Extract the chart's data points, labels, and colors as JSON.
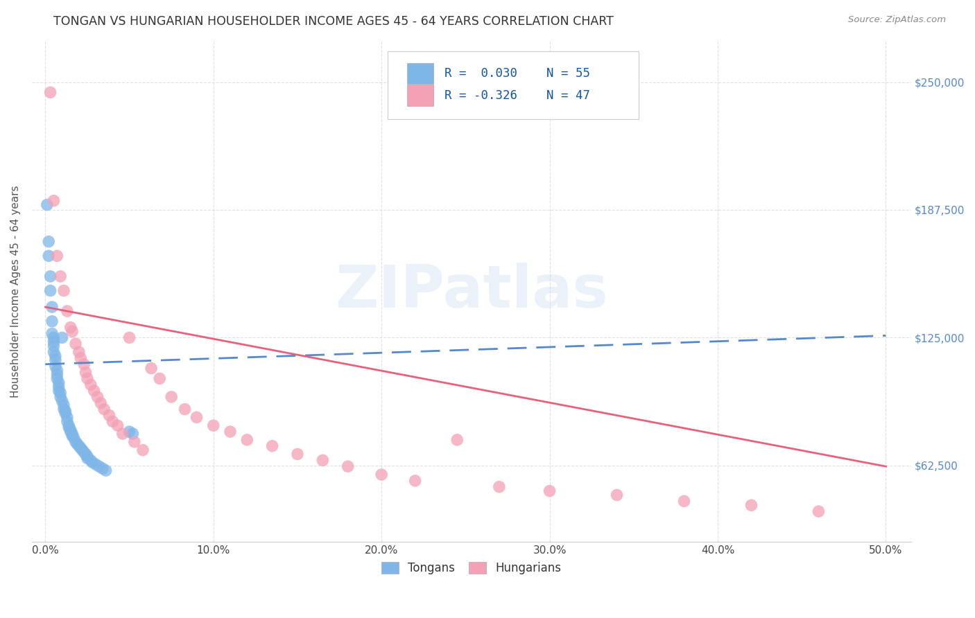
{
  "title": "TONGAN VS HUNGARIAN HOUSEHOLDER INCOME AGES 45 - 64 YEARS CORRELATION CHART",
  "source": "Source: ZipAtlas.com",
  "ylabel_label": "Householder Income Ages 45 - 64 years",
  "tongan_color": "#7EB6E8",
  "hungarian_color": "#F4A0B5",
  "tongan_line_color": "#5588CC",
  "hungarian_line_color": "#E8607A",
  "grid_color": "#CCCCCC",
  "background_color": "#FFFFFF",
  "tongan_x": [
    0.001,
    0.002,
    0.002,
    0.003,
    0.003,
    0.004,
    0.004,
    0.004,
    0.005,
    0.005,
    0.005,
    0.005,
    0.006,
    0.006,
    0.006,
    0.007,
    0.007,
    0.007,
    0.008,
    0.008,
    0.008,
    0.009,
    0.009,
    0.01,
    0.01,
    0.011,
    0.011,
    0.012,
    0.012,
    0.013,
    0.013,
    0.014,
    0.014,
    0.015,
    0.015,
    0.016,
    0.016,
    0.017,
    0.018,
    0.019,
    0.02,
    0.021,
    0.022,
    0.023,
    0.024,
    0.025,
    0.025,
    0.027,
    0.028,
    0.03,
    0.032,
    0.034,
    0.036,
    0.05,
    0.052
  ],
  "tongan_y": [
    190000,
    172000,
    165000,
    155000,
    148000,
    140000,
    133000,
    127000,
    125000,
    123000,
    121000,
    118000,
    116000,
    114000,
    111000,
    109000,
    107000,
    105000,
    103000,
    101000,
    99000,
    98000,
    96000,
    125000,
    94000,
    92000,
    90000,
    89000,
    88000,
    86000,
    84000,
    82000,
    81000,
    80000,
    79000,
    78000,
    77000,
    76000,
    74000,
    73000,
    72000,
    71000,
    70000,
    69000,
    68000,
    67000,
    66000,
    65000,
    64000,
    63000,
    62000,
    61000,
    60000,
    79000,
    78000
  ],
  "hungarian_x": [
    0.003,
    0.005,
    0.007,
    0.009,
    0.011,
    0.013,
    0.015,
    0.016,
    0.018,
    0.02,
    0.021,
    0.023,
    0.024,
    0.025,
    0.027,
    0.029,
    0.031,
    0.033,
    0.035,
    0.038,
    0.04,
    0.043,
    0.046,
    0.05,
    0.053,
    0.058,
    0.063,
    0.068,
    0.075,
    0.083,
    0.09,
    0.1,
    0.11,
    0.12,
    0.135,
    0.15,
    0.165,
    0.18,
    0.2,
    0.22,
    0.245,
    0.27,
    0.3,
    0.34,
    0.38,
    0.42,
    0.46
  ],
  "hungarian_y": [
    245000,
    192000,
    165000,
    155000,
    148000,
    138000,
    130000,
    128000,
    122000,
    118000,
    115000,
    112000,
    108000,
    105000,
    102000,
    99000,
    96000,
    93000,
    90000,
    87000,
    84000,
    82000,
    78000,
    125000,
    74000,
    70000,
    110000,
    105000,
    96000,
    90000,
    86000,
    82000,
    79000,
    75000,
    72000,
    68000,
    65000,
    62000,
    58000,
    55000,
    75000,
    52000,
    50000,
    48000,
    45000,
    43000,
    40000
  ],
  "tongan_trend": [
    0.0,
    0.5,
    112000,
    126000
  ],
  "hungarian_trend": [
    0.0,
    0.5,
    140000,
    62000
  ],
  "xtick_vals": [
    0.0,
    0.1,
    0.2,
    0.3,
    0.4,
    0.5
  ],
  "xtick_labels": [
    "0.0%",
    "10.0%",
    "20.0%",
    "30.0%",
    "40.0%",
    "50.0%"
  ],
  "ytick_vals": [
    62500,
    125000,
    187500,
    250000
  ],
  "ytick_labels": [
    "$62,500",
    "$125,000",
    "$187,500",
    "$250,000"
  ],
  "xlim": [
    -0.008,
    0.515
  ],
  "ylim": [
    25000,
    270000
  ]
}
